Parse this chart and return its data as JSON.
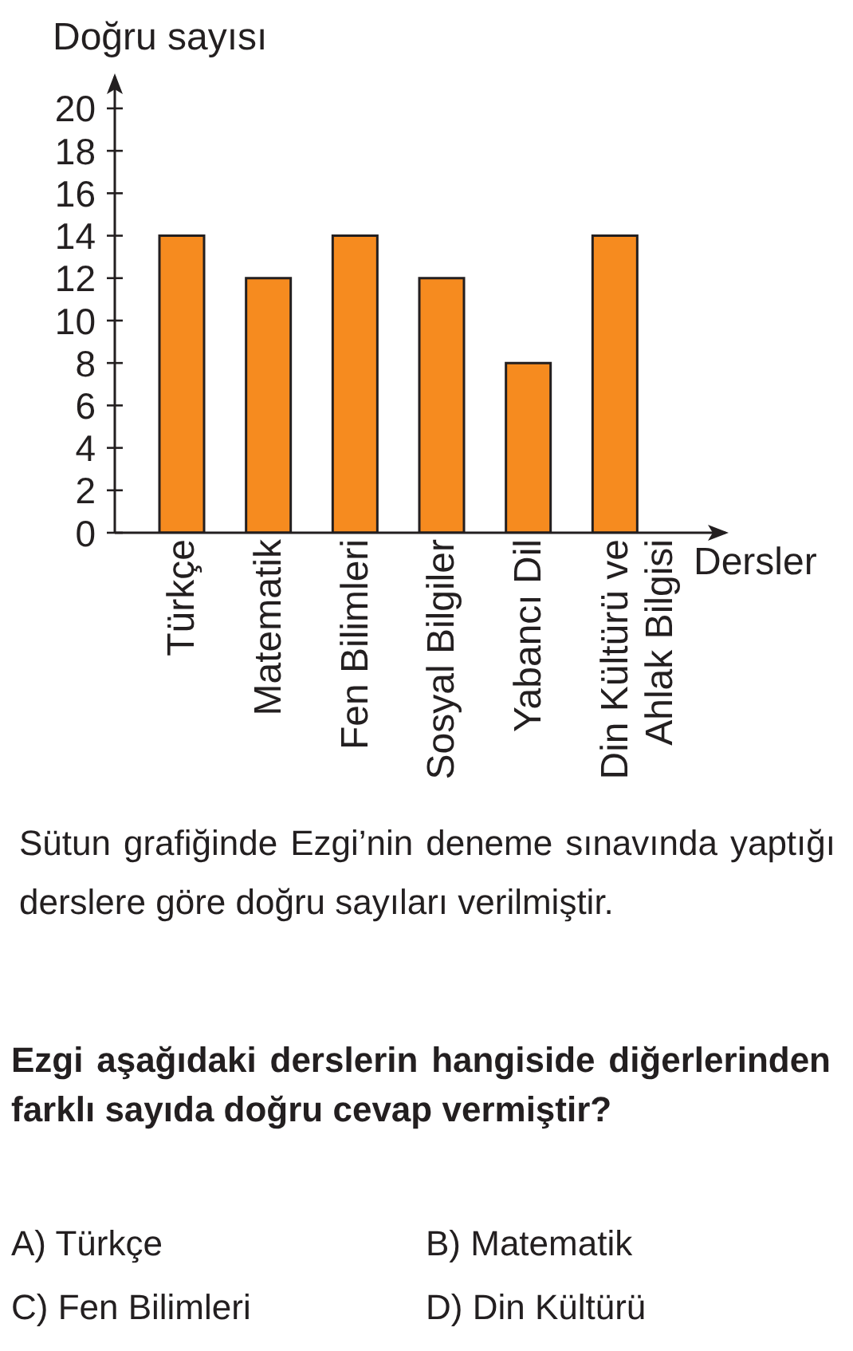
{
  "chart_data": {
    "type": "bar",
    "ylabel": "Doğru sayısı",
    "xlabel": "Dersler",
    "categories": [
      "Türkçe",
      "Matematik",
      "Fen Bilimleri",
      "Sosyal Bilgiler",
      "Yabancı Dil",
      "Din Kültürü ve Ahlak Bilgisi"
    ],
    "values": [
      14,
      12,
      14,
      12,
      8,
      14
    ],
    "color": "#f68b1f",
    "ylim": [
      0,
      21.5
    ],
    "yticks": [
      0,
      2,
      4,
      6,
      8,
      10,
      12,
      14,
      16,
      18,
      20
    ],
    "annotations": [
      "Sütun grafiğinde Ezgi’nin deneme sınavında yaptığı derslere göre doğru sayıları verilmiştir.",
      "Ezgi aşağıdaki derslerin hangiside diğerlerinden farklı sayıda doğru cevap vermiştir?",
      "A) Türkçe",
      "B) Matematik",
      "C) Fen Bilimleri",
      "D) Din Kültürü"
    ]
  }
}
